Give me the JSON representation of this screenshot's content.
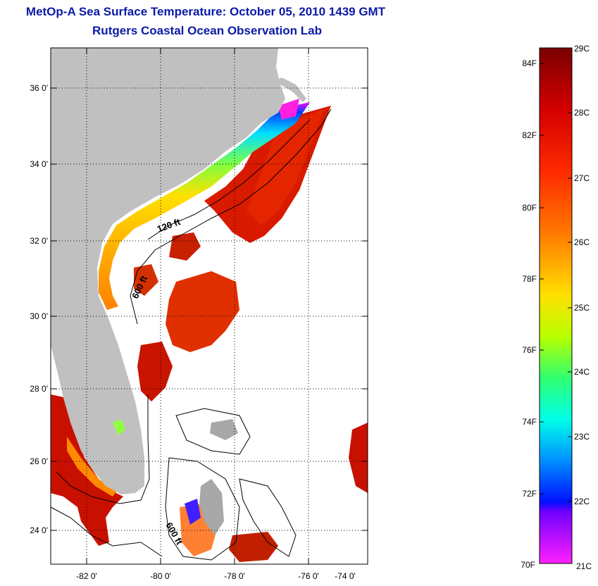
{
  "header": {
    "title": "MetOp-A Sea Surface Temperature:  October 05, 2010 1439 GMT",
    "subtitle": "Rutgers Coastal Ocean Observation Lab"
  },
  "map": {
    "lat_labels": [
      "36 0'",
      "34 0'",
      "32 0'",
      "30 0'",
      "28 0'",
      "26 0'",
      "24 0'"
    ],
    "lon_labels": [
      "-82 0'",
      "-80 0'",
      "-78 0'",
      "-76 0'",
      "-74 0'"
    ],
    "contour_labels": [
      "120 ft",
      "600 ft",
      "600 ft"
    ],
    "land_color": "#c0c0c0"
  },
  "colorbar": {
    "fahrenheit_labels": [
      "84F",
      "82F",
      "80F",
      "78F",
      "76F",
      "74F",
      "72F",
      "70F"
    ],
    "celsius_labels": [
      "29C",
      "28C",
      "27C",
      "26C",
      "25C",
      "24C",
      "23C",
      "22C",
      "21C"
    ],
    "colors": [
      "#7a0000",
      "#d40000",
      "#ff2a00",
      "#ff7a00",
      "#ffd000",
      "#c8ff00",
      "#40ff60",
      "#00ffe0",
      "#00a0ff",
      "#0010ff",
      "#8000ff",
      "#ff20ff"
    ]
  }
}
